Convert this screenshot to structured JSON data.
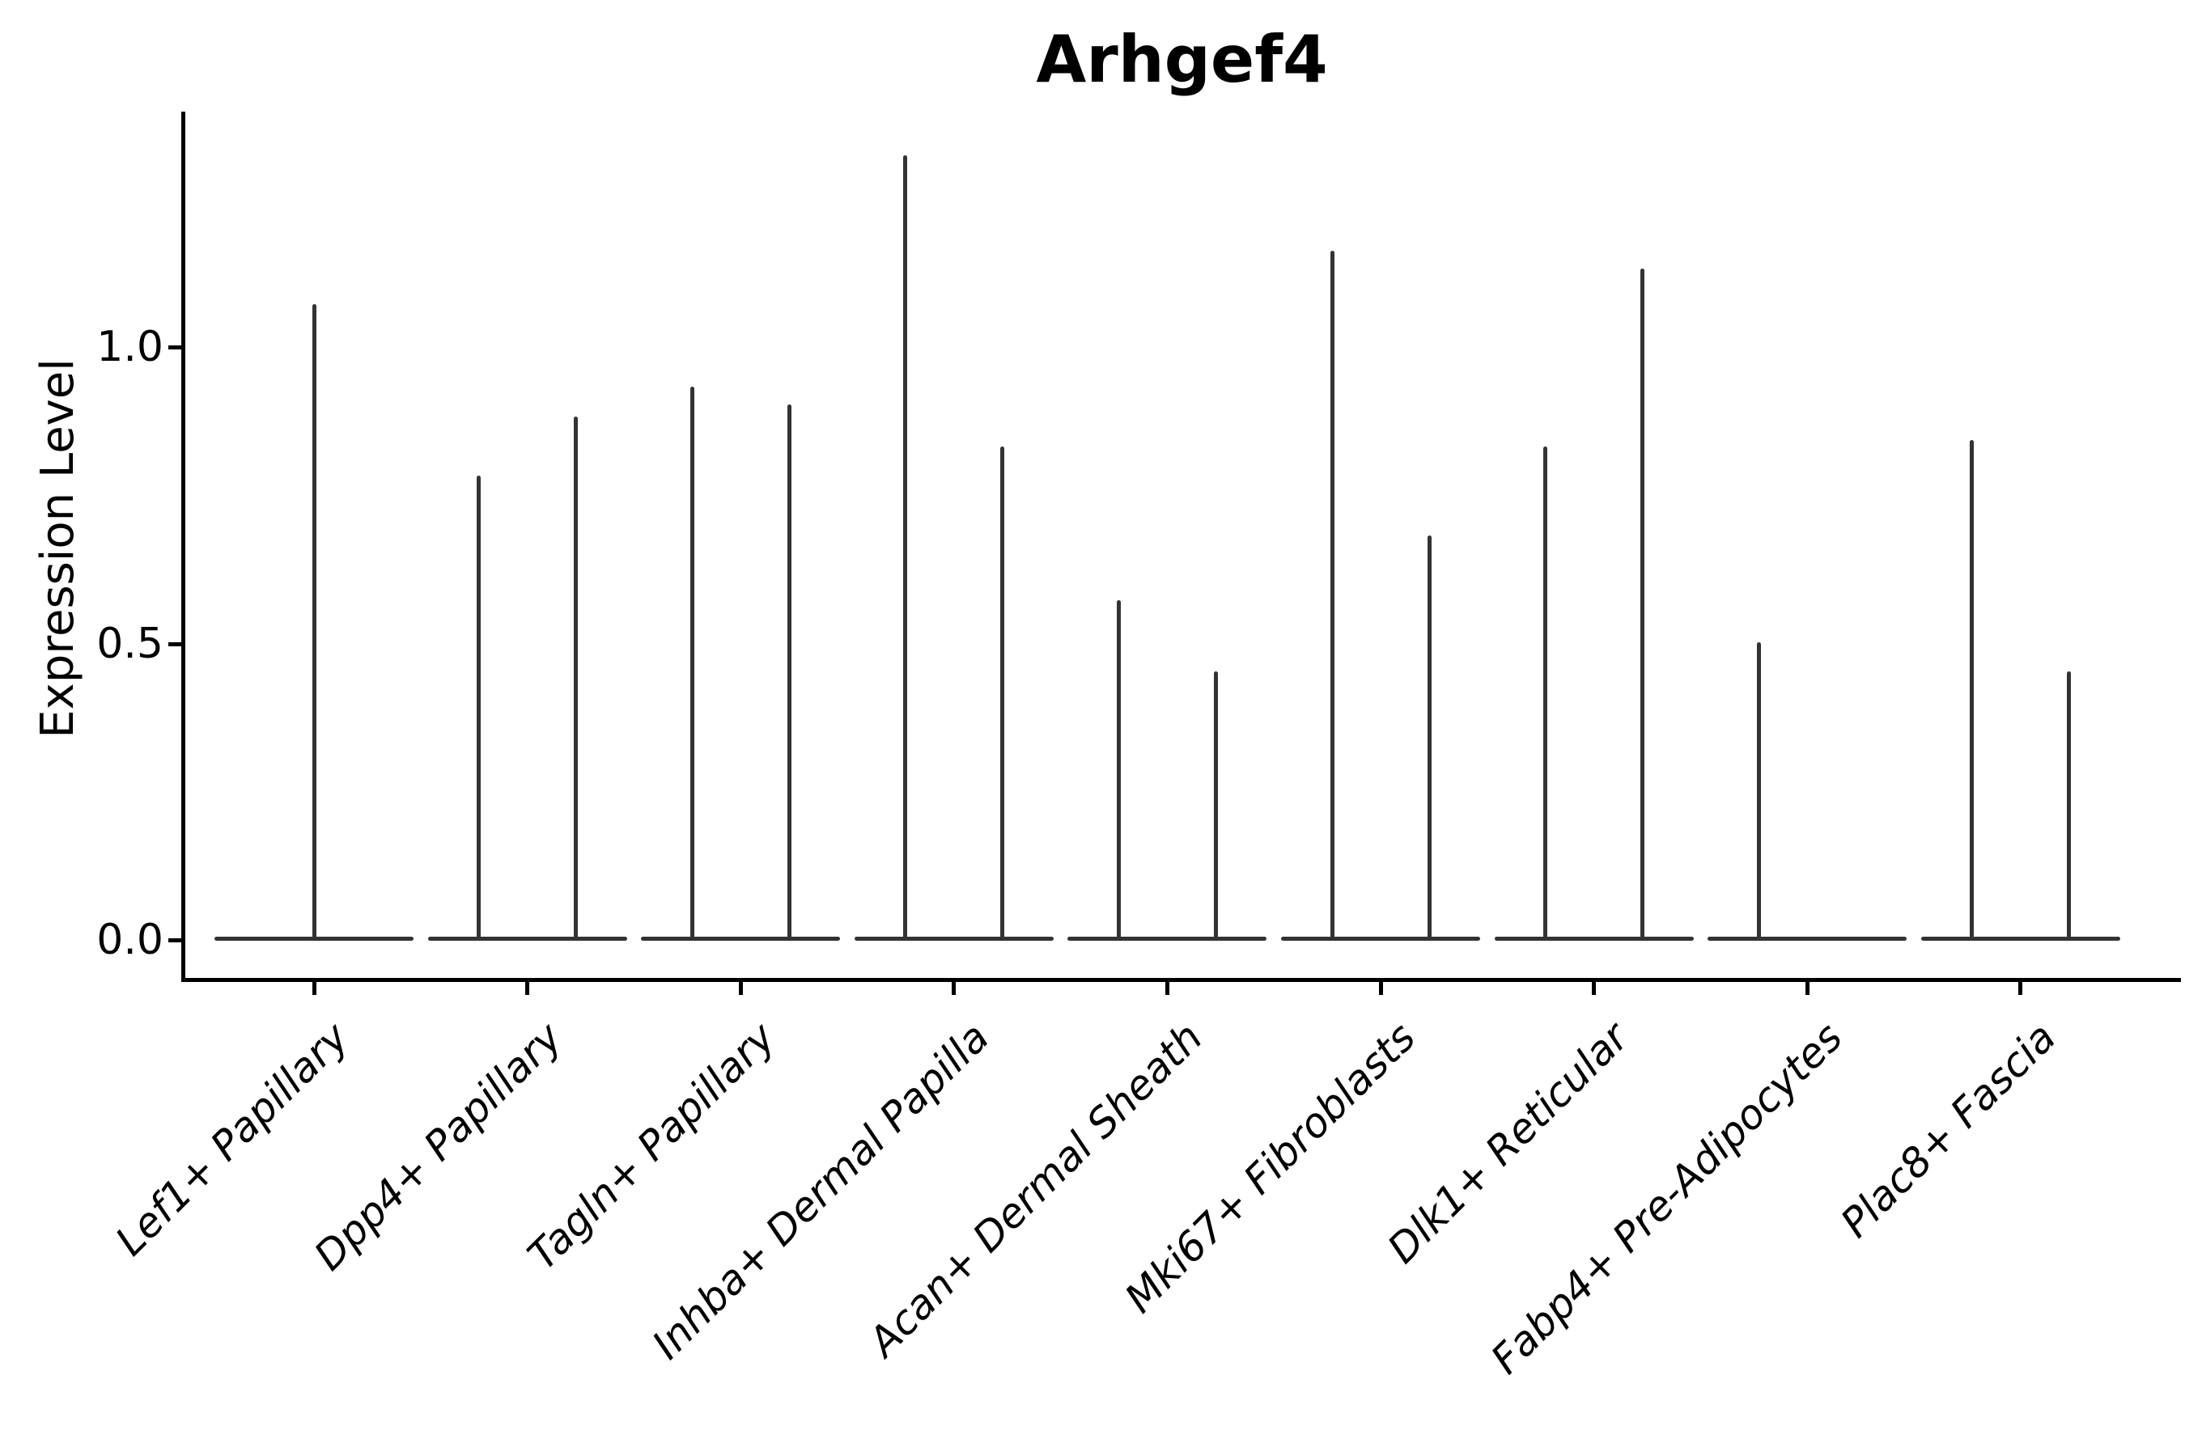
{
  "title": "Arhgef4",
  "ylabel": "Expression Level",
  "colors": {
    "violin": "#333333",
    "axis": "#000000",
    "text": "#000000",
    "background": "#ffffff"
  },
  "chart_data": {
    "type": "violin",
    "title": "Arhgef4",
    "xlabel": "",
    "ylabel": "Expression Level",
    "ylim": [
      0,
      1.4
    ],
    "grid": false,
    "legend": "none",
    "yticks": [
      {
        "value": 0.0,
        "label": "0.0"
      },
      {
        "value": 0.5,
        "label": "0.5"
      },
      {
        "value": 1.0,
        "label": "1.0"
      }
    ],
    "categories": [
      "Lef1+ Papillary",
      "Dpp4+ Papillary",
      "Tagln+ Papillary",
      "Inhba+ Dermal Papilla",
      "Acan+ Dermal Sheath",
      "Mki67+ Fibroblasts",
      "Dlk1+ Reticular",
      "Fabp4+ Pre-Adipocytes",
      "Plac8+ Fascia"
    ],
    "series": [
      {
        "category": "Lef1+ Papillary",
        "violins": [
          {
            "position": "center",
            "min": 0,
            "max": 1.07
          }
        ]
      },
      {
        "category": "Dpp4+ Papillary",
        "violins": [
          {
            "position": "left",
            "min": 0,
            "max": 0.78
          },
          {
            "position": "right",
            "min": 0,
            "max": 0.88
          }
        ]
      },
      {
        "category": "Tagln+ Papillary",
        "violins": [
          {
            "position": "left",
            "min": 0,
            "max": 0.93
          },
          {
            "position": "right",
            "min": 0,
            "max": 0.9
          }
        ]
      },
      {
        "category": "Inhba+ Dermal Papilla",
        "violins": [
          {
            "position": "left",
            "min": 0,
            "max": 1.32
          },
          {
            "position": "right",
            "min": 0,
            "max": 0.83
          }
        ]
      },
      {
        "category": "Acan+ Dermal Sheath",
        "violins": [
          {
            "position": "left",
            "min": 0,
            "max": 0.57
          },
          {
            "position": "right",
            "min": 0,
            "max": 0.45
          }
        ]
      },
      {
        "category": "Mki67+ Fibroblasts",
        "violins": [
          {
            "position": "left",
            "min": 0,
            "max": 1.16
          },
          {
            "position": "right",
            "min": 0,
            "max": 0.68
          }
        ]
      },
      {
        "category": "Dlk1+ Reticular",
        "violins": [
          {
            "position": "left",
            "min": 0,
            "max": 0.83
          },
          {
            "position": "right",
            "min": 0,
            "max": 1.13
          }
        ]
      },
      {
        "category": "Fabp4+ Pre-Adipocytes",
        "violins": [
          {
            "position": "left",
            "min": 0,
            "max": 0.5
          }
        ]
      },
      {
        "category": "Plac8+ Fascia",
        "violins": [
          {
            "position": "left",
            "min": 0,
            "max": 0.84
          },
          {
            "position": "right",
            "min": 0,
            "max": 0.45
          }
        ]
      }
    ]
  }
}
